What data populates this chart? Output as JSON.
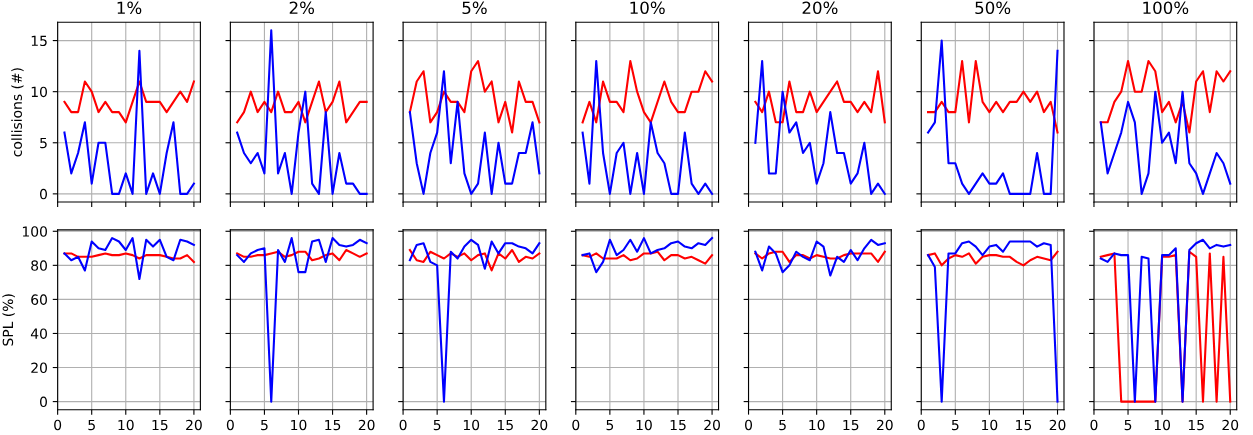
{
  "chart_data": [
    {
      "type": "line",
      "title": "1%",
      "ylabel": "collisions (#)",
      "x": [
        1,
        2,
        3,
        4,
        5,
        6,
        7,
        8,
        9,
        10,
        11,
        12,
        13,
        14,
        15,
        16,
        17,
        18,
        19,
        20
      ],
      "xlim": [
        0,
        20.95
      ],
      "xticks": [
        0,
        5,
        10,
        15,
        20
      ],
      "ylim": [
        -0.8,
        16.8
      ],
      "yticks": [
        0,
        5,
        10,
        15
      ],
      "grid": true,
      "tick_labels": "y",
      "series": [
        {
          "color": "#ff0000",
          "values": [
            9,
            8,
            8,
            11,
            10,
            8,
            9,
            8,
            8,
            7,
            9,
            11,
            9,
            9,
            9,
            8,
            9,
            10,
            9,
            11
          ]
        },
        {
          "color": "#0000ff",
          "values": [
            6,
            2,
            4,
            7,
            1,
            5,
            5,
            0,
            0,
            2,
            0,
            14,
            0,
            2,
            0,
            4,
            7,
            0,
            0,
            1
          ]
        }
      ]
    },
    {
      "type": "line",
      "title": "2%",
      "x": [
        1,
        2,
        3,
        4,
        5,
        6,
        7,
        8,
        9,
        10,
        11,
        12,
        13,
        14,
        15,
        16,
        17,
        18,
        19,
        20
      ],
      "xlim": [
        0,
        20.95
      ],
      "xticks": [
        0,
        5,
        10,
        15,
        20
      ],
      "ylim": [
        -0.8,
        16.8
      ],
      "yticks": [
        0,
        5,
        10,
        15
      ],
      "grid": true,
      "tick_labels": false,
      "series": [
        {
          "color": "#ff0000",
          "values": [
            7,
            8,
            10,
            8,
            9,
            8,
            10,
            8,
            8,
            9,
            7,
            9,
            11,
            8,
            9,
            11,
            7,
            8,
            9,
            9
          ]
        },
        {
          "color": "#0000ff",
          "values": [
            6,
            4,
            3,
            4,
            2,
            16,
            2,
            4,
            0,
            6,
            10,
            1,
            0,
            8,
            0,
            4,
            1,
            1,
            0,
            0
          ]
        }
      ]
    },
    {
      "type": "line",
      "title": "5%",
      "x": [
        1,
        2,
        3,
        4,
        5,
        6,
        7,
        8,
        9,
        10,
        11,
        12,
        13,
        14,
        15,
        16,
        17,
        18,
        19,
        20
      ],
      "xlim": [
        0,
        20.95
      ],
      "xticks": [
        0,
        5,
        10,
        15,
        20
      ],
      "ylim": [
        -0.8,
        16.8
      ],
      "yticks": [
        0,
        5,
        10,
        15
      ],
      "grid": true,
      "tick_labels": false,
      "series": [
        {
          "color": "#ff0000",
          "values": [
            8,
            11,
            12,
            7,
            8,
            10,
            9,
            9,
            8,
            12,
            13,
            10,
            11,
            7,
            9,
            6,
            11,
            9,
            9,
            7
          ]
        },
        {
          "color": "#0000ff",
          "values": [
            8,
            3,
            0,
            4,
            6,
            12,
            3,
            9,
            2,
            0,
            1,
            6,
            0,
            5,
            1,
            1,
            4,
            4,
            7,
            2
          ]
        }
      ]
    },
    {
      "type": "line",
      "title": "10%",
      "x": [
        1,
        2,
        3,
        4,
        5,
        6,
        7,
        8,
        9,
        10,
        11,
        12,
        13,
        14,
        15,
        16,
        17,
        18,
        19,
        20
      ],
      "xlim": [
        0,
        20.95
      ],
      "xticks": [
        0,
        5,
        10,
        15,
        20
      ],
      "ylim": [
        -0.8,
        16.8
      ],
      "yticks": [
        0,
        5,
        10,
        15
      ],
      "grid": true,
      "tick_labels": false,
      "series": [
        {
          "color": "#ff0000",
          "values": [
            7,
            9,
            7,
            11,
            9,
            9,
            8,
            13,
            10,
            8,
            7,
            9,
            11,
            9,
            8,
            8,
            10,
            10,
            12,
            11
          ]
        },
        {
          "color": "#0000ff",
          "values": [
            6,
            1,
            13,
            4,
            0,
            4,
            5,
            0,
            4,
            0,
            7,
            4,
            3,
            0,
            0,
            6,
            1,
            0,
            1,
            0
          ]
        }
      ]
    },
    {
      "type": "line",
      "title": "20%",
      "x": [
        1,
        2,
        3,
        4,
        5,
        6,
        7,
        8,
        9,
        10,
        11,
        12,
        13,
        14,
        15,
        16,
        17,
        18,
        19,
        20
      ],
      "xlim": [
        0,
        20.95
      ],
      "xticks": [
        0,
        5,
        10,
        15,
        20
      ],
      "ylim": [
        -0.8,
        16.8
      ],
      "yticks": [
        0,
        5,
        10,
        15
      ],
      "grid": true,
      "tick_labels": false,
      "series": [
        {
          "color": "#ff0000",
          "values": [
            9,
            8,
            10,
            7,
            7,
            11,
            8,
            8,
            10,
            8,
            9,
            10,
            11,
            9,
            9,
            8,
            9,
            8,
            12,
            7
          ]
        },
        {
          "color": "#0000ff",
          "values": [
            5,
            13,
            2,
            2,
            10,
            6,
            7,
            4,
            5,
            1,
            3,
            8,
            4,
            4,
            1,
            2,
            5,
            0,
            1,
            0
          ]
        }
      ]
    },
    {
      "type": "line",
      "title": "50%",
      "x": [
        1,
        2,
        3,
        4,
        5,
        6,
        7,
        8,
        9,
        10,
        11,
        12,
        13,
        14,
        15,
        16,
        17,
        18,
        19,
        20
      ],
      "xlim": [
        0,
        20.95
      ],
      "xticks": [
        0,
        5,
        10,
        15,
        20
      ],
      "ylim": [
        -0.8,
        16.8
      ],
      "yticks": [
        0,
        5,
        10,
        15
      ],
      "grid": true,
      "tick_labels": false,
      "series": [
        {
          "color": "#ff0000",
          "values": [
            8,
            8,
            9,
            8,
            8,
            13,
            7,
            13,
            9,
            8,
            9,
            8,
            9,
            9,
            10,
            9,
            10,
            8,
            9,
            6
          ]
        },
        {
          "color": "#0000ff",
          "values": [
            6,
            7,
            15,
            3,
            3,
            1,
            0,
            1,
            2,
            1,
            1,
            2,
            0,
            0,
            0,
            0,
            4,
            0,
            0,
            14
          ]
        }
      ]
    },
    {
      "type": "line",
      "title": "100%",
      "x": [
        1,
        2,
        3,
        4,
        5,
        6,
        7,
        8,
        9,
        10,
        11,
        12,
        13,
        14,
        15,
        16,
        17,
        18,
        19,
        20
      ],
      "xlim": [
        0,
        20.95
      ],
      "xticks": [
        0,
        5,
        10,
        15,
        20
      ],
      "ylim": [
        -0.8,
        16.8
      ],
      "yticks": [
        0,
        5,
        10,
        15
      ],
      "grid": true,
      "tick_labels": false,
      "series": [
        {
          "color": "#ff0000",
          "values": [
            7,
            7,
            9,
            10,
            13,
            10,
            10,
            13,
            12,
            8,
            9,
            7,
            9,
            6,
            11,
            12,
            8,
            12,
            11,
            12
          ]
        },
        {
          "color": "#0000ff",
          "values": [
            7,
            2,
            4,
            6,
            9,
            7,
            0,
            2,
            10,
            5,
            6,
            3,
            10,
            3,
            2,
            0,
            2,
            4,
            3,
            1
          ]
        }
      ]
    },
    {
      "type": "line",
      "ylabel": "SPL (%)",
      "x": [
        1,
        2,
        3,
        4,
        5,
        6,
        7,
        8,
        9,
        10,
        11,
        12,
        13,
        14,
        15,
        16,
        17,
        18,
        19,
        20
      ],
      "xlim": [
        0,
        20.95
      ],
      "xticks": [
        0,
        5,
        10,
        15,
        20
      ],
      "ylim": [
        -4.8,
        100.8
      ],
      "yticks": [
        0,
        20,
        40,
        60,
        80,
        100
      ],
      "grid": true,
      "series": [
        {
          "color": "#ff0000",
          "values": [
            87,
            87,
            85,
            85,
            85,
            86,
            87,
            86,
            86,
            87,
            86,
            84,
            86,
            86,
            86,
            85,
            84,
            84,
            86,
            82
          ]
        },
        {
          "color": "#0000ff",
          "values": [
            87,
            83,
            85,
            77,
            94,
            90,
            89,
            96,
            94,
            89,
            96,
            72,
            95,
            91,
            95,
            85,
            83,
            95,
            94,
            92
          ]
        }
      ]
    },
    {
      "type": "line",
      "x": [
        1,
        2,
        3,
        4,
        5,
        6,
        7,
        8,
        9,
        10,
        11,
        12,
        13,
        14,
        15,
        16,
        17,
        18,
        19,
        20
      ],
      "xlim": [
        0,
        20.95
      ],
      "xticks": [
        0,
        5,
        10,
        15,
        20
      ],
      "ylim": [
        -4.8,
        100.8
      ],
      "yticks": [
        0,
        20,
        40,
        60,
        80,
        100
      ],
      "grid": true,
      "tick_labels": "x",
      "series": [
        {
          "color": "#ff0000",
          "values": [
            87,
            85,
            85,
            86,
            86,
            87,
            88,
            85,
            86,
            88,
            88,
            83,
            84,
            86,
            87,
            83,
            89,
            87,
            85,
            87
          ]
        },
        {
          "color": "#0000ff",
          "values": [
            86,
            82,
            87,
            89,
            90,
            0,
            89,
            82,
            96,
            76,
            76,
            94,
            95,
            82,
            96,
            92,
            91,
            92,
            95,
            93
          ]
        }
      ]
    },
    {
      "type": "line",
      "x": [
        1,
        2,
        3,
        4,
        5,
        6,
        7,
        8,
        9,
        10,
        11,
        12,
        13,
        14,
        15,
        16,
        17,
        18,
        19,
        20
      ],
      "xlim": [
        0,
        20.95
      ],
      "xticks": [
        0,
        5,
        10,
        15,
        20
      ],
      "ylim": [
        -4.8,
        100.8
      ],
      "yticks": [
        0,
        20,
        40,
        60,
        80,
        100
      ],
      "grid": true,
      "tick_labels": "x",
      "series": [
        {
          "color": "#ff0000",
          "values": [
            89,
            83,
            82,
            88,
            86,
            84,
            87,
            85,
            87,
            83,
            86,
            87,
            77,
            87,
            84,
            89,
            82,
            85,
            84,
            87
          ]
        },
        {
          "color": "#0000ff",
          "values": [
            83,
            92,
            93,
            82,
            80,
            0,
            88,
            84,
            91,
            95,
            92,
            78,
            94,
            87,
            93,
            93,
            91,
            90,
            87,
            93
          ]
        }
      ]
    },
    {
      "type": "line",
      "x": [
        1,
        2,
        3,
        4,
        5,
        6,
        7,
        8,
        9,
        10,
        11,
        12,
        13,
        14,
        15,
        16,
        17,
        18,
        19,
        20
      ],
      "xlim": [
        0,
        20.95
      ],
      "xticks": [
        0,
        5,
        10,
        15,
        20
      ],
      "ylim": [
        -4.8,
        100.8
      ],
      "yticks": [
        0,
        20,
        40,
        60,
        80,
        100
      ],
      "grid": true,
      "tick_labels": "x",
      "series": [
        {
          "color": "#ff0000",
          "values": [
            86,
            85,
            87,
            84,
            84,
            84,
            86,
            83,
            84,
            87,
            87,
            88,
            83,
            86,
            86,
            84,
            85,
            83,
            81,
            86
          ]
        },
        {
          "color": "#0000ff",
          "values": [
            86,
            87,
            76,
            82,
            95,
            86,
            89,
            95,
            88,
            96,
            87,
            89,
            90,
            93,
            94,
            91,
            90,
            93,
            92,
            96
          ]
        }
      ]
    },
    {
      "type": "line",
      "x": [
        1,
        2,
        3,
        4,
        5,
        6,
        7,
        8,
        9,
        10,
        11,
        12,
        13,
        14,
        15,
        16,
        17,
        18,
        19,
        20
      ],
      "xlim": [
        0,
        20.95
      ],
      "xticks": [
        0,
        5,
        10,
        15,
        20
      ],
      "ylim": [
        -4.8,
        100.8
      ],
      "yticks": [
        0,
        20,
        40,
        60,
        80,
        100
      ],
      "grid": true,
      "tick_labels": "x",
      "series": [
        {
          "color": "#ff0000",
          "values": [
            87,
            84,
            87,
            88,
            88,
            82,
            86,
            86,
            84,
            86,
            85,
            84,
            84,
            86,
            87,
            87,
            87,
            87,
            82,
            88
          ]
        },
        {
          "color": "#0000ff",
          "values": [
            88,
            77,
            91,
            87,
            76,
            80,
            88,
            85,
            83,
            94,
            91,
            74,
            85,
            82,
            89,
            83,
            90,
            95,
            92,
            93
          ]
        }
      ]
    },
    {
      "type": "line",
      "x": [
        1,
        2,
        3,
        4,
        5,
        6,
        7,
        8,
        9,
        10,
        11,
        12,
        13,
        14,
        15,
        16,
        17,
        18,
        19,
        20
      ],
      "xlim": [
        0,
        20.95
      ],
      "xticks": [
        0,
        5,
        10,
        15,
        20
      ],
      "ylim": [
        -4.8,
        100.8
      ],
      "yticks": [
        0,
        20,
        40,
        60,
        80,
        100
      ],
      "grid": true,
      "tick_labels": "x",
      "series": [
        {
          "color": "#ff0000",
          "values": [
            86,
            87,
            80,
            84,
            86,
            85,
            87,
            81,
            85,
            86,
            86,
            85,
            85,
            82,
            80,
            83,
            85,
            84,
            83,
            88
          ]
        },
        {
          "color": "#0000ff",
          "values": [
            86,
            79,
            0,
            87,
            87,
            93,
            94,
            91,
            86,
            91,
            92,
            88,
            94,
            94,
            94,
            94,
            91,
            93,
            92,
            0
          ]
        }
      ]
    },
    {
      "type": "line",
      "x": [
        1,
        2,
        3,
        4,
        5,
        6,
        7,
        8,
        9,
        10,
        11,
        12,
        13,
        14,
        15,
        16,
        17,
        18,
        19,
        20
      ],
      "xlim": [
        0,
        20.95
      ],
      "xticks": [
        0,
        5,
        10,
        15,
        20
      ],
      "ylim": [
        -4.8,
        100.8
      ],
      "yticks": [
        0,
        20,
        40,
        60,
        80,
        100
      ],
      "grid": true,
      "tick_labels": "x",
      "series": [
        {
          "color": "#ff0000",
          "values": [
            85,
            86,
            87,
            0,
            0,
            0,
            0,
            0,
            0,
            85,
            85,
            86,
            0,
            88,
            85,
            0,
            87,
            0,
            85,
            0
          ]
        },
        {
          "color": "#0000ff",
          "values": [
            84,
            82,
            87,
            86,
            86,
            0,
            85,
            84,
            0,
            86,
            86,
            90,
            0,
            89,
            93,
            95,
            90,
            92,
            91,
            92
          ]
        }
      ]
    }
  ]
}
